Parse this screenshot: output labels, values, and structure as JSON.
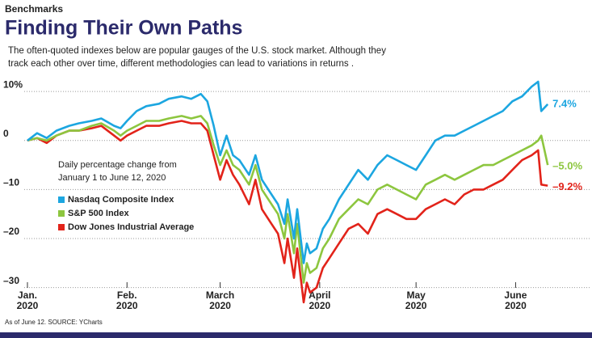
{
  "kicker": "Benchmarks",
  "title": "Finding Their Own Paths",
  "subtitle": [
    "The often-quoted indexes below are popular gauges of the U.S. stock market. Although they",
    "track each other over time, different methodologies can lead to variations in returns ."
  ],
  "footer": "As of June 12.  SOURCE: YCharts",
  "chart_data": {
    "type": "line",
    "annotation": [
      "Daily percentage change from",
      "January 1 to June 12, 2020"
    ],
    "x": [
      0,
      3,
      6,
      9,
      13,
      16,
      20,
      23,
      27,
      29,
      31,
      34,
      37,
      41,
      44,
      48,
      51,
      54,
      56,
      58,
      60,
      62,
      64,
      66,
      69,
      71,
      73,
      76,
      78,
      80,
      81,
      83,
      84,
      86,
      87,
      88,
      90,
      92,
      94,
      97,
      100,
      103,
      106,
      109,
      112,
      115,
      118,
      121,
      124,
      127,
      130,
      133,
      136,
      139,
      142,
      145,
      148,
      151,
      154,
      157,
      159,
      160,
      162
    ],
    "xlim": [
      -1,
      170
    ],
    "xticks": [
      {
        "value": 0,
        "label": "Jan.\n2020"
      },
      {
        "value": 31,
        "label": "Feb.\n2020"
      },
      {
        "value": 60,
        "label": "March\n2020"
      },
      {
        "value": 91,
        "label": "April\n2020"
      },
      {
        "value": 121,
        "label": "May\n2020"
      },
      {
        "value": 152,
        "label": "June\n2020"
      }
    ],
    "ylim": [
      -35,
      12
    ],
    "yticks": [
      {
        "value": 10,
        "label": "10%"
      },
      0,
      {
        "value": -10,
        "label": "–10"
      },
      {
        "value": -20,
        "label": "–20"
      },
      {
        "value": -30,
        "label": "–30"
      }
    ],
    "grid": true,
    "legend": "left",
    "series": [
      {
        "name": "Nasdaq Composite Index",
        "color": "#1ca6e0",
        "values": [
          0,
          1.5,
          0.5,
          2,
          3,
          3.5,
          4,
          4.5,
          3,
          2.5,
          4,
          6,
          7,
          7.5,
          8.5,
          9,
          8.5,
          9.5,
          8,
          3,
          -3,
          1,
          -3,
          -4,
          -7,
          -3,
          -8,
          -11,
          -13,
          -17,
          -12,
          -20,
          -14,
          -25,
          -21,
          -23,
          -22,
          -18,
          -16,
          -12,
          -9,
          -6,
          -8,
          -5,
          -3,
          -4,
          -5,
          -6,
          -3,
          0,
          1,
          1,
          2,
          3,
          4,
          5,
          6,
          8,
          9,
          11,
          12,
          6,
          7.4
        ],
        "value_labels": [
          null,
          null,
          null,
          null,
          null,
          null,
          null,
          null,
          null,
          null,
          null,
          null,
          null,
          null,
          null,
          null,
          null,
          null,
          null,
          null,
          null,
          null,
          null,
          null,
          null,
          null,
          null,
          null,
          null,
          null,
          null,
          null,
          null,
          null,
          null,
          null,
          null,
          null,
          null,
          null,
          null,
          null,
          null,
          null,
          null,
          null,
          null,
          null,
          null,
          null,
          null,
          null,
          null,
          null,
          null,
          null,
          null,
          null,
          null,
          null,
          null,
          null,
          "7.4%"
        ]
      },
      {
        "name": "S&P 500 Index",
        "color": "#8dc63f",
        "values": [
          0,
          0.5,
          0,
          1,
          2,
          2,
          3,
          3.5,
          2,
          1,
          2,
          3,
          4,
          4,
          4.5,
          5,
          4.5,
          5,
          3.5,
          -1,
          -5,
          -2,
          -5,
          -6,
          -9,
          -5,
          -10,
          -13,
          -15,
          -20,
          -15,
          -23,
          -17,
          -29,
          -25,
          -27,
          -26,
          -22,
          -20,
          -16,
          -14,
          -12,
          -13,
          -10,
          -9,
          -10,
          -11,
          -12,
          -9,
          -8,
          -7,
          -8,
          -7,
          -6,
          -5,
          -5,
          -4,
          -3,
          -2,
          -1,
          0,
          1,
          -5.0
        ],
        "value_labels": [
          null,
          null,
          null,
          null,
          null,
          null,
          null,
          null,
          null,
          null,
          null,
          null,
          null,
          null,
          null,
          null,
          null,
          null,
          null,
          null,
          null,
          null,
          null,
          null,
          null,
          null,
          null,
          null,
          null,
          null,
          null,
          null,
          null,
          null,
          null,
          null,
          null,
          null,
          null,
          null,
          null,
          null,
          null,
          null,
          null,
          null,
          null,
          null,
          null,
          null,
          null,
          null,
          null,
          null,
          null,
          null,
          null,
          null,
          null,
          null,
          null,
          null,
          "–5.0%"
        ]
      },
      {
        "name": "Dow Jones Industrial Average",
        "color": "#e2231a",
        "values": [
          0,
          0.5,
          -0.5,
          1,
          2,
          2,
          2.5,
          3,
          1,
          0,
          1,
          2,
          3,
          3,
          3.5,
          4,
          3.5,
          3.5,
          2,
          -3,
          -8,
          -4,
          -7,
          -9,
          -13,
          -8,
          -14,
          -17,
          -19,
          -25,
          -20,
          -28,
          -22,
          -33,
          -29,
          -31,
          -30,
          -26,
          -24,
          -21,
          -18,
          -17,
          -19,
          -15,
          -14,
          -15,
          -16,
          -16,
          -14,
          -13,
          -12,
          -13,
          -11,
          -10,
          -10,
          -9,
          -8,
          -6,
          -4,
          -3,
          -2,
          -9,
          -9.2
        ],
        "value_labels": [
          null,
          null,
          null,
          null,
          null,
          null,
          null,
          null,
          null,
          null,
          null,
          null,
          null,
          null,
          null,
          null,
          null,
          null,
          null,
          null,
          null,
          null,
          null,
          null,
          null,
          null,
          null,
          null,
          null,
          null,
          null,
          null,
          null,
          null,
          null,
          null,
          null,
          null,
          null,
          null,
          null,
          null,
          null,
          null,
          null,
          null,
          null,
          null,
          null,
          null,
          null,
          null,
          null,
          null,
          null,
          null,
          null,
          null,
          null,
          null,
          null,
          null,
          "–9.2%"
        ]
      }
    ]
  }
}
